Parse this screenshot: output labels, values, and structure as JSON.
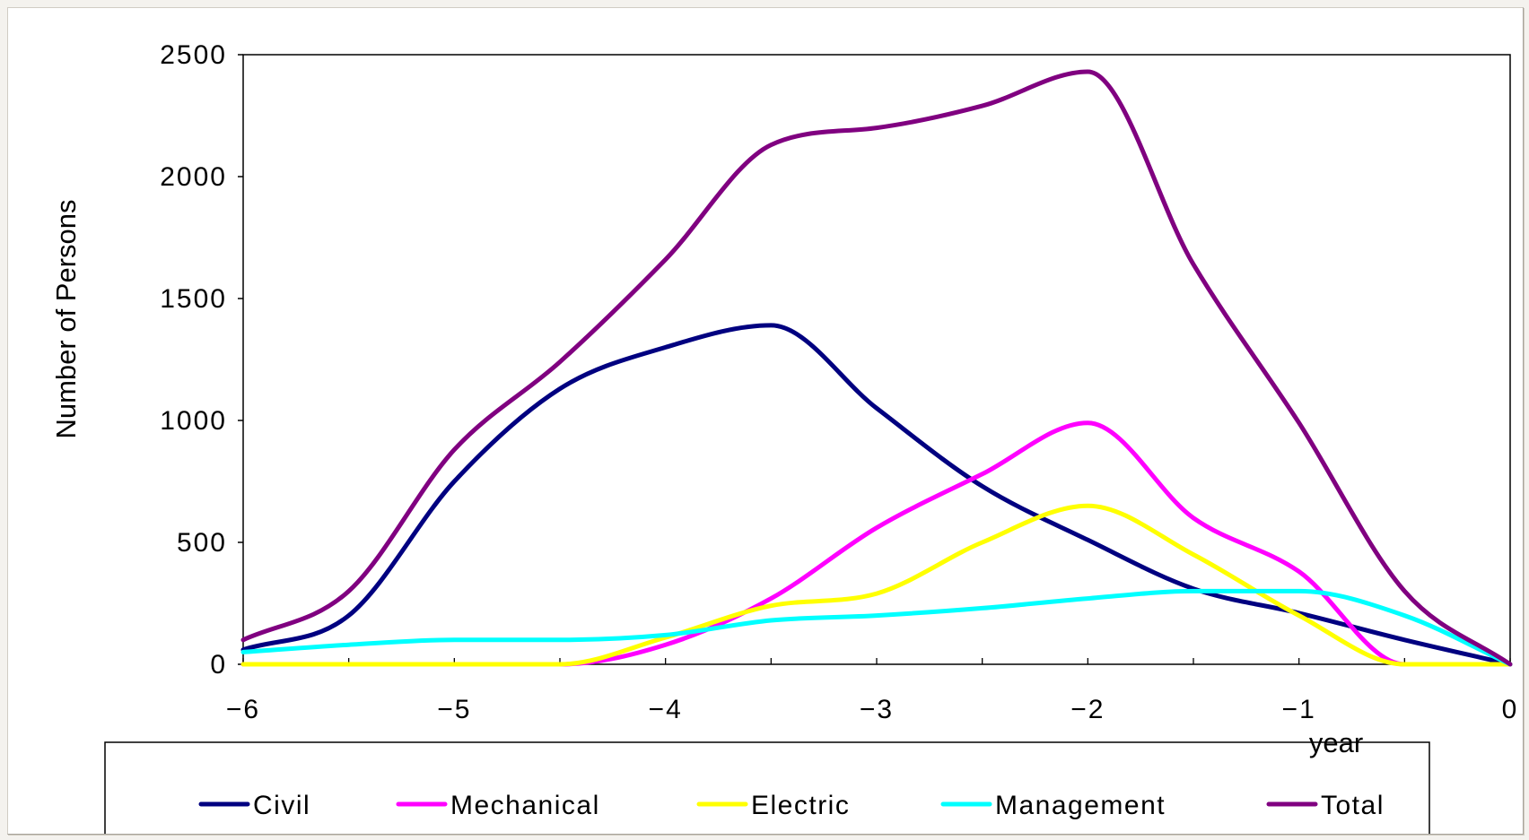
{
  "chart_data": {
    "type": "line",
    "title": "",
    "xlabel": "year",
    "ylabel": "Number of Persons",
    "xlim": [
      -6,
      0
    ],
    "ylim": [
      0,
      2500
    ],
    "x_ticks": [
      -6,
      -5,
      -4,
      -3,
      -2,
      -1,
      0
    ],
    "x_tick_labels": [
      "−6",
      "−5",
      "−4",
      "−3",
      "−2",
      "−1",
      "0"
    ],
    "y_ticks": [
      0,
      500,
      1000,
      1500,
      2000,
      2500
    ],
    "y_tick_labels": [
      "0",
      "500",
      "1000",
      "1500",
      "2000",
      "2500"
    ],
    "grid": false,
    "legend_position": "bottom",
    "series": [
      {
        "name": "Civil",
        "color": "#000080",
        "x": [
          -6,
          -5.5,
          -5,
          -4.5,
          -4,
          -3.5,
          -3,
          -2.5,
          -2,
          -1.5,
          -1,
          -0.5,
          0
        ],
        "y": [
          60,
          200,
          750,
          1130,
          1300,
          1390,
          1050,
          730,
          510,
          310,
          210,
          100,
          0
        ]
      },
      {
        "name": "Mechanical",
        "color": "#ff00ff",
        "x": [
          -6,
          -5.5,
          -5,
          -4.5,
          -4,
          -3.5,
          -3,
          -2.5,
          -2,
          -1.5,
          -1,
          -0.5,
          0
        ],
        "y": [
          0,
          0,
          0,
          0,
          80,
          270,
          560,
          780,
          990,
          600,
          380,
          0,
          0
        ]
      },
      {
        "name": "Electric",
        "color": "#ffff00",
        "x": [
          -6,
          -5.5,
          -5,
          -4.5,
          -4,
          -3.5,
          -3,
          -2.5,
          -2,
          -1.5,
          -1,
          -0.5,
          0
        ],
        "y": [
          0,
          0,
          0,
          0,
          110,
          240,
          290,
          500,
          650,
          450,
          200,
          0,
          0
        ]
      },
      {
        "name": "Management",
        "color": "#00ffff",
        "x": [
          -6,
          -5.5,
          -5,
          -4.5,
          -4,
          -3.5,
          -3,
          -2.5,
          -2,
          -1.5,
          -1,
          -0.5,
          0
        ],
        "y": [
          50,
          80,
          100,
          100,
          120,
          180,
          200,
          230,
          270,
          300,
          300,
          200,
          0
        ]
      },
      {
        "name": "Total",
        "color": "#800080",
        "x": [
          -6,
          -5.5,
          -5,
          -4.5,
          -4,
          -3.5,
          -3,
          -2.5,
          -2,
          -1.5,
          -1,
          -0.5,
          0
        ],
        "y": [
          100,
          300,
          880,
          1240,
          1660,
          2130,
          2200,
          2290,
          2430,
          1640,
          990,
          300,
          0
        ]
      }
    ]
  }
}
